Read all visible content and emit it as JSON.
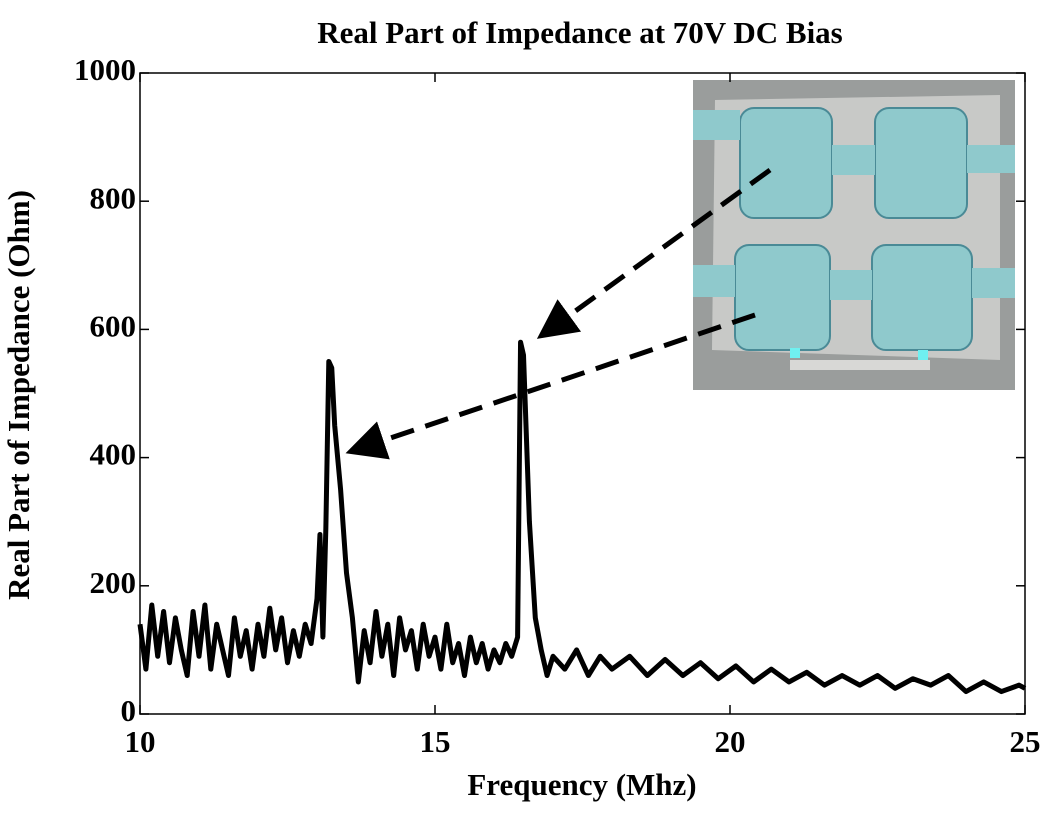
{
  "chart_data": {
    "type": "line",
    "title": "Real Part of Impedance at 70V DC Bias",
    "x_label": "Frequency (Mhz)",
    "y_label": "Real Part of Impedance (Ohm)",
    "x": [
      10,
      10.1,
      10.2,
      10.3,
      10.4,
      10.5,
      10.6,
      10.7,
      10.8,
      10.9,
      11,
      11.1,
      11.2,
      11.3,
      11.4,
      11.5,
      11.6,
      11.7,
      11.8,
      11.9,
      12,
      12.1,
      12.2,
      12.3,
      12.4,
      12.5,
      12.6,
      12.7,
      12.8,
      12.9,
      13,
      13.05,
      13.1,
      13.15,
      13.2,
      13.25,
      13.3,
      13.4,
      13.5,
      13.6,
      13.7,
      13.8,
      13.9,
      14,
      14.1,
      14.2,
      14.3,
      14.4,
      14.5,
      14.6,
      14.7,
      14.8,
      14.9,
      15,
      15.1,
      15.2,
      15.3,
      15.4,
      15.5,
      15.6,
      15.7,
      15.8,
      15.9,
      16,
      16.1,
      16.2,
      16.3,
      16.4,
      16.45,
      16.5,
      16.6,
      16.7,
      16.8,
      16.9,
      17,
      17.2,
      17.4,
      17.6,
      17.8,
      18,
      18.3,
      18.6,
      18.9,
      19.2,
      19.5,
      19.8,
      20.1,
      20.4,
      20.7,
      21,
      21.3,
      21.6,
      21.9,
      22.2,
      22.5,
      22.8,
      23.1,
      23.4,
      23.7,
      24,
      24.3,
      24.6,
      24.9,
      25
    ],
    "series": [
      {
        "color": "#000000",
        "values": [
          140,
          70,
          170,
          90,
          160,
          80,
          150,
          100,
          60,
          160,
          90,
          170,
          70,
          140,
          100,
          60,
          150,
          90,
          130,
          70,
          140,
          90,
          165,
          100,
          150,
          80,
          130,
          90,
          140,
          110,
          180,
          280,
          120,
          290,
          550,
          540,
          450,
          350,
          220,
          150,
          50,
          130,
          80,
          160,
          90,
          140,
          60,
          150,
          100,
          130,
          70,
          140,
          90,
          120,
          70,
          140,
          80,
          110,
          60,
          120,
          80,
          110,
          70,
          100,
          80,
          110,
          90,
          120,
          580,
          560,
          300,
          150,
          100,
          60,
          90,
          70,
          100,
          60,
          90,
          70,
          90,
          60,
          85,
          60,
          80,
          55,
          75,
          50,
          70,
          50,
          65,
          45,
          60,
          45,
          60,
          40,
          55,
          45,
          60,
          35,
          50,
          35,
          45,
          40
        ]
      }
    ],
    "xlim": [
      10,
      25
    ],
    "xticks": [
      10,
      15,
      20,
      25
    ],
    "ylim": [
      0,
      1000
    ],
    "yticks": [
      0,
      200,
      400,
      600,
      800,
      1000
    ],
    "grid": false
  }
}
